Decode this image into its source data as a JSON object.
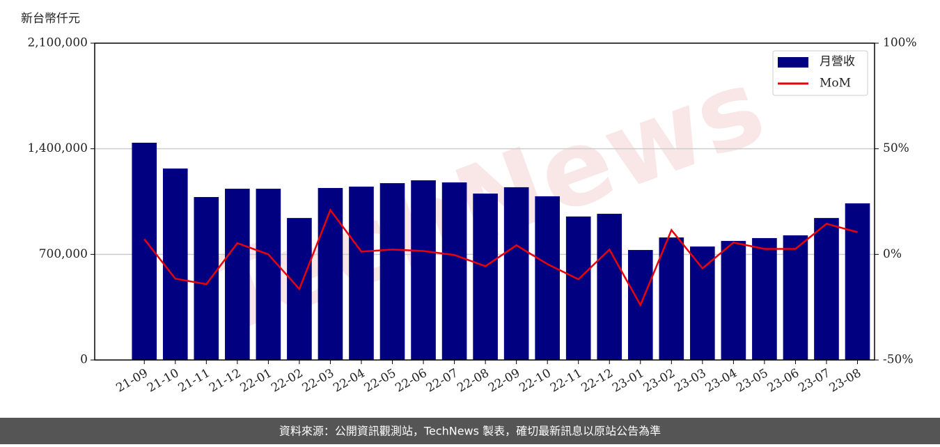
{
  "chart_data": {
    "type": "bar",
    "y_label": "新台幣仟元",
    "watermark": "TechNews",
    "footer": "資料來源：公開資訊觀測站，TechNews 製表，確切最新訊息以原站公告為準",
    "categories": [
      "21-09",
      "21-10",
      "21-11",
      "21-12",
      "22-01",
      "22-02",
      "22-03",
      "22-04",
      "22-05",
      "22-06",
      "22-07",
      "22-08",
      "22-09",
      "22-10",
      "22-11",
      "22-12",
      "23-01",
      "23-02",
      "23-03",
      "23-04",
      "23-05",
      "23-06",
      "23-07",
      "23-08"
    ],
    "series": [
      {
        "name": "月營收",
        "type": "bar",
        "color": "#000080",
        "values": [
          1440000,
          1269000,
          1080000,
          1135000,
          1135000,
          941000,
          1140000,
          1149000,
          1172000,
          1191000,
          1177000,
          1103000,
          1145000,
          1085000,
          951000,
          969000,
          729000,
          812000,
          752000,
          789000,
          808000,
          826000,
          941000,
          1038000
        ]
      },
      {
        "name": "MoM",
        "type": "line",
        "axis": "y2",
        "color": "#e8000b",
        "values": [
          7.2,
          -11.5,
          -14.1,
          5.3,
          0,
          -16.4,
          21,
          1.3,
          2.3,
          1.6,
          -0.3,
          -5.6,
          4.3,
          -4.6,
          -11.8,
          2.3,
          -24,
          11.5,
          -6.6,
          5.6,
          2.6,
          2.6,
          14.5,
          10.5
        ]
      }
    ],
    "ylim": [
      0,
      2100000
    ],
    "yticks": [
      0,
      {
        "value": 700000,
        "label": "700,000"
      },
      {
        "value": 1400000,
        "label": "1,400,000"
      },
      {
        "value": 2100000,
        "label": "2,100,000"
      }
    ],
    "y2lim": [
      -50,
      100
    ],
    "y2ticks": [
      {
        "value": -50,
        "label": "-50%"
      },
      {
        "value": 0,
        "label": "0%"
      },
      {
        "value": 50,
        "label": "50%"
      },
      {
        "value": 100,
        "label": "100%"
      }
    ],
    "grid": true,
    "legend": "upper right"
  }
}
